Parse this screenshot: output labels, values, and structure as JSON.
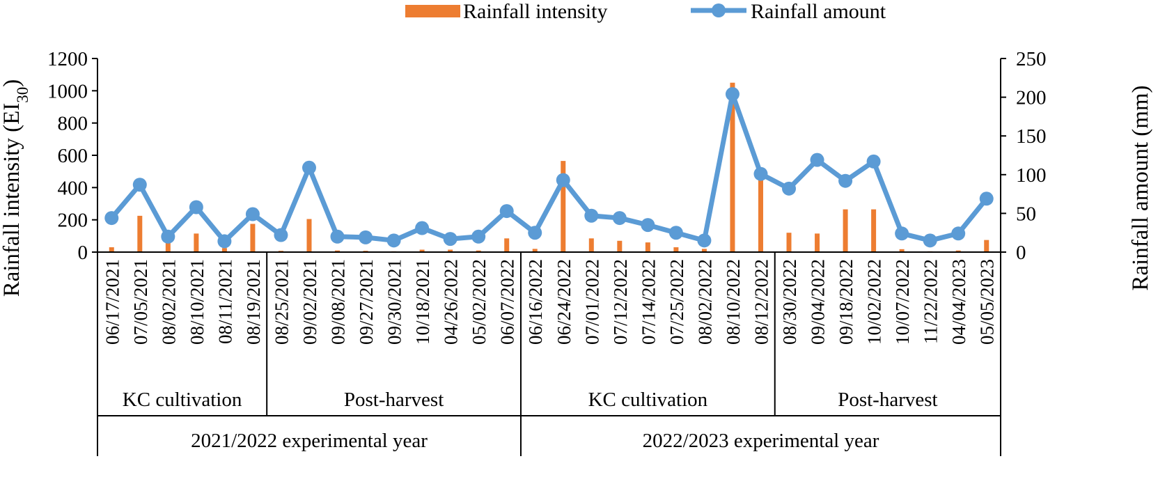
{
  "colors": {
    "bar": "#ED7D31",
    "line": "#5B9BD5",
    "axis": "#000000"
  },
  "chart_data": {
    "type": "bar+line",
    "legend": {
      "placement": "top-center",
      "entries": [
        "Rainfall intensity",
        "Rainfall amount"
      ]
    },
    "y_left": {
      "label_main": "Rainfall intensity (EI",
      "label_sub": "30",
      "label_close": ")",
      "range": [
        0,
        1200
      ],
      "ticks": [
        "0",
        "200",
        "400",
        "600",
        "800",
        "1000",
        "1200"
      ]
    },
    "y_right": {
      "label": "Rainfall amount (mm)",
      "range": [
        0,
        250
      ],
      "ticks": [
        "0",
        "50",
        "100",
        "150",
        "200",
        "250"
      ]
    },
    "categories": [
      "06/17/2021",
      "07/05/2021",
      "08/02/2021",
      "08/10/2021",
      "08/11/2021",
      "08/19/2021",
      "08/25/2021",
      "09/02/2021",
      "09/08/2021",
      "09/27/2021",
      "09/30/2021",
      "10/18/2021",
      "04/26/2022",
      "05/02/2022",
      "06/07/2022",
      "06/16/2022",
      "06/24/2022",
      "07/01/2022",
      "07/12/2022",
      "07/14/2022",
      "07/25/2022",
      "08/02/2022",
      "08/10/2022",
      "08/12/2022",
      "08/30/2022",
      "09/04/2022",
      "09/18/2022",
      "10/02/2022",
      "10/07/2022",
      "11/22/2022",
      "04/04/2023",
      "05/05/2023"
    ],
    "series": [
      {
        "name": "Rainfall intensity",
        "type": "bar",
        "axis": "left",
        "values": [
          30,
          225,
          80,
          115,
          25,
          175,
          8,
          205,
          10,
          8,
          5,
          15,
          15,
          10,
          85,
          20,
          565,
          85,
          70,
          60,
          30,
          20,
          1050,
          460,
          120,
          115,
          265,
          265,
          18,
          5,
          10,
          75
        ]
      },
      {
        "name": "Rainfall amount",
        "type": "line",
        "axis": "right",
        "values": [
          44,
          87,
          20,
          58,
          14,
          49,
          22,
          109,
          20,
          19,
          15,
          31,
          17,
          20,
          53,
          25,
          93,
          47,
          44,
          35,
          25,
          15,
          204,
          101,
          82,
          119,
          92,
          117,
          24,
          15,
          24,
          69
        ]
      }
    ],
    "groups_level1": [
      {
        "label": "KC cultivation",
        "start": 0,
        "end": 5
      },
      {
        "label": "Post-harvest",
        "start": 6,
        "end": 14
      },
      {
        "label": "KC cultivation",
        "start": 15,
        "end": 23
      },
      {
        "label": "Post-harvest",
        "start": 24,
        "end": 31
      }
    ],
    "groups_level2": [
      {
        "label": "2021/2022 experimental year",
        "start": 0,
        "end": 14
      },
      {
        "label": "2022/2023 experimental year",
        "start": 15,
        "end": 31
      }
    ]
  }
}
